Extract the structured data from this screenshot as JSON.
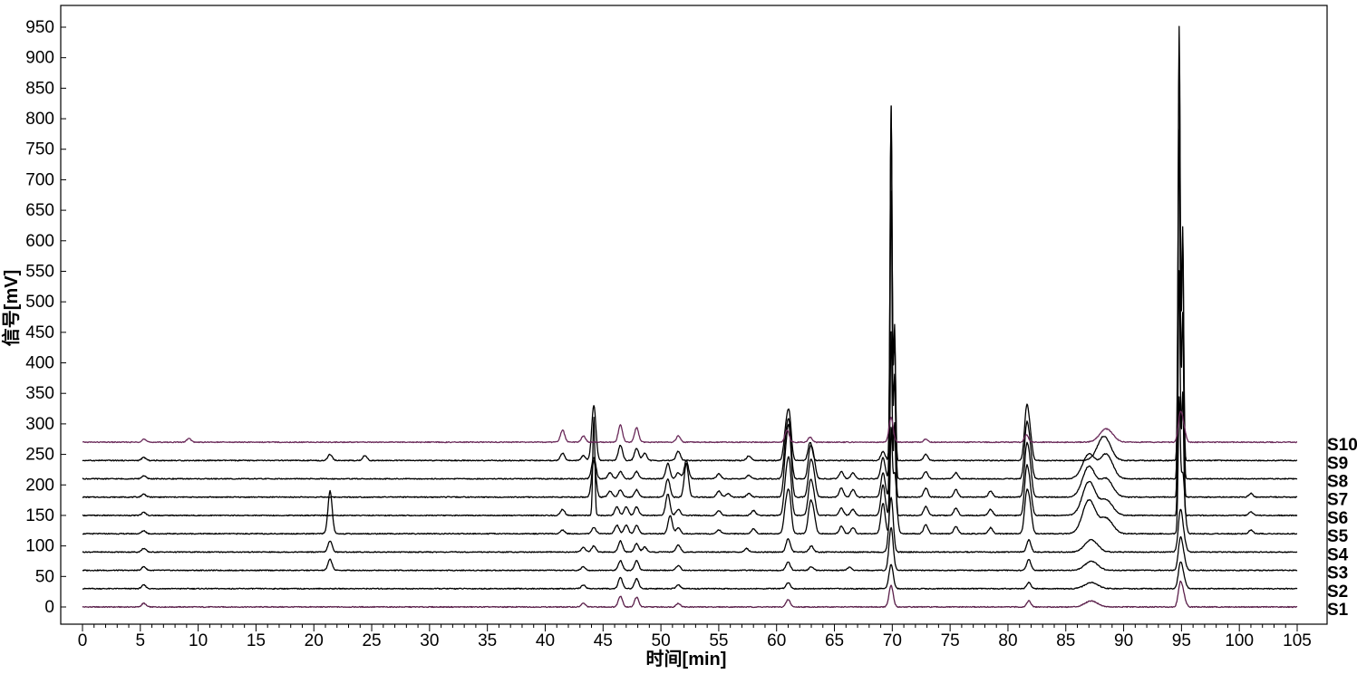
{
  "chart_data": {
    "type": "line",
    "title": "",
    "xlabel": "时间[min]",
    "ylabel": "信号[mV]",
    "xlim": [
      0,
      105
    ],
    "ylim": [
      -25,
      975
    ],
    "x_ticks": [
      0,
      5,
      10,
      15,
      20,
      25,
      30,
      35,
      40,
      45,
      50,
      55,
      60,
      65,
      70,
      75,
      80,
      85,
      90,
      95,
      100,
      105
    ],
    "y_ticks": [
      0,
      50,
      100,
      150,
      200,
      250,
      300,
      350,
      400,
      450,
      500,
      550,
      600,
      650,
      700,
      750,
      800,
      850,
      900,
      950
    ],
    "grid": false,
    "legend": "series labels at right end of each trace",
    "series": [
      {
        "name": "S1",
        "baseline": 0,
        "color": "#5a1f4a",
        "peaks": [
          [
            5.3,
            6
          ],
          [
            43.3,
            6
          ],
          [
            46.5,
            18
          ],
          [
            47.9,
            16
          ],
          [
            51.5,
            6
          ],
          [
            61.0,
            12
          ],
          [
            69.9,
            35
          ],
          [
            81.8,
            10
          ],
          [
            87.2,
            10
          ],
          [
            94.9,
            38
          ],
          [
            95.2,
            15
          ]
        ]
      },
      {
        "name": "S2",
        "baseline": 30,
        "color": "#000000",
        "peaks": [
          [
            5.3,
            6
          ],
          [
            43.3,
            6
          ],
          [
            46.5,
            18
          ],
          [
            47.9,
            16
          ],
          [
            51.5,
            6
          ],
          [
            61.0,
            10
          ],
          [
            69.9,
            40
          ],
          [
            81.8,
            10
          ],
          [
            87.2,
            10
          ],
          [
            94.9,
            40
          ],
          [
            95.2,
            15
          ]
        ]
      },
      {
        "name": "S3",
        "baseline": 60,
        "color": "#000000",
        "peaks": [
          [
            5.3,
            6
          ],
          [
            21.4,
            18
          ],
          [
            43.3,
            6
          ],
          [
            46.5,
            16
          ],
          [
            47.9,
            16
          ],
          [
            51.5,
            8
          ],
          [
            61.0,
            14
          ],
          [
            63.0,
            6
          ],
          [
            66.3,
            5
          ],
          [
            69.9,
            70
          ],
          [
            81.8,
            18
          ],
          [
            87.2,
            15
          ],
          [
            94.9,
            50
          ],
          [
            95.2,
            18
          ]
        ]
      },
      {
        "name": "S4",
        "baseline": 90,
        "color": "#000000",
        "peaks": [
          [
            5.3,
            6
          ],
          [
            21.4,
            18
          ],
          [
            43.3,
            8
          ],
          [
            44.2,
            10
          ],
          [
            46.5,
            18
          ],
          [
            47.9,
            14
          ],
          [
            48.6,
            8
          ],
          [
            51.5,
            12
          ],
          [
            57.4,
            6
          ],
          [
            61.0,
            22
          ],
          [
            63.0,
            10
          ],
          [
            69.9,
            90
          ],
          [
            81.8,
            20
          ],
          [
            87.2,
            20
          ],
          [
            94.9,
            65
          ],
          [
            95.2,
            20
          ]
        ]
      },
      {
        "name": "S5",
        "baseline": 120,
        "color": "#000000",
        "peaks": [
          [
            5.3,
            5
          ],
          [
            21.4,
            70
          ],
          [
            41.5,
            6
          ],
          [
            44.2,
            10
          ],
          [
            46.2,
            14
          ],
          [
            47.0,
            14
          ],
          [
            47.9,
            14
          ],
          [
            50.8,
            30
          ],
          [
            51.5,
            10
          ],
          [
            55.0,
            6
          ],
          [
            58.0,
            8
          ],
          [
            60.8,
            40
          ],
          [
            61.1,
            60
          ],
          [
            62.9,
            45
          ],
          [
            63.2,
            30
          ],
          [
            65.6,
            12
          ],
          [
            66.6,
            10
          ],
          [
            69.2,
            50
          ],
          [
            69.9,
            150
          ],
          [
            70.2,
            100
          ],
          [
            72.9,
            15
          ],
          [
            75.5,
            12
          ],
          [
            78.5,
            10
          ],
          [
            81.6,
            60
          ],
          [
            81.9,
            40
          ],
          [
            87.0,
            55
          ],
          [
            88.5,
            25
          ],
          [
            94.8,
            200
          ],
          [
            95.1,
            100
          ],
          [
            101.0,
            6
          ]
        ]
      },
      {
        "name": "S6",
        "baseline": 150,
        "color": "#000000",
        "peaks": [
          [
            5.3,
            5
          ],
          [
            41.5,
            10
          ],
          [
            44.2,
            160
          ],
          [
            46.2,
            14
          ],
          [
            47.0,
            14
          ],
          [
            47.9,
            14
          ],
          [
            50.6,
            35
          ],
          [
            51.5,
            10
          ],
          [
            55.0,
            8
          ],
          [
            58.0,
            8
          ],
          [
            60.8,
            50
          ],
          [
            61.1,
            80
          ],
          [
            62.9,
            50
          ],
          [
            63.2,
            30
          ],
          [
            65.6,
            12
          ],
          [
            66.6,
            10
          ],
          [
            69.2,
            50
          ],
          [
            69.9,
            300
          ],
          [
            70.2,
            150
          ],
          [
            72.9,
            15
          ],
          [
            75.5,
            12
          ],
          [
            78.5,
            10
          ],
          [
            81.6,
            70
          ],
          [
            81.9,
            40
          ],
          [
            87.0,
            55
          ],
          [
            88.5,
            25
          ],
          [
            94.8,
            400
          ],
          [
            95.1,
            200
          ],
          [
            101.0,
            6
          ]
        ]
      },
      {
        "name": "S7",
        "baseline": 180,
        "color": "#000000",
        "peaks": [
          [
            5.3,
            5
          ],
          [
            44.2,
            60
          ],
          [
            45.6,
            10
          ],
          [
            46.5,
            12
          ],
          [
            47.9,
            12
          ],
          [
            50.6,
            30
          ],
          [
            52.2,
            55
          ],
          [
            55.0,
            10
          ],
          [
            55.8,
            6
          ],
          [
            57.6,
            6
          ],
          [
            60.8,
            60
          ],
          [
            61.1,
            100
          ],
          [
            62.9,
            50
          ],
          [
            63.2,
            35
          ],
          [
            65.6,
            15
          ],
          [
            66.6,
            12
          ],
          [
            69.2,
            40
          ],
          [
            69.9,
            500
          ],
          [
            70.2,
            200
          ],
          [
            72.9,
            15
          ],
          [
            75.5,
            12
          ],
          [
            78.5,
            10
          ],
          [
            81.6,
            75
          ],
          [
            81.9,
            45
          ],
          [
            87.0,
            50
          ],
          [
            88.5,
            30
          ],
          [
            94.8,
            600
          ],
          [
            95.1,
            300
          ],
          [
            101.0,
            6
          ]
        ]
      },
      {
        "name": "S8",
        "baseline": 210,
        "color": "#000000",
        "peaks": [
          [
            5.3,
            5
          ],
          [
            44.2,
            35
          ],
          [
            45.6,
            10
          ],
          [
            46.5,
            12
          ],
          [
            47.9,
            12
          ],
          [
            50.6,
            25
          ],
          [
            51.5,
            10
          ],
          [
            52.2,
            30
          ],
          [
            55.0,
            8
          ],
          [
            57.6,
            6
          ],
          [
            60.8,
            55
          ],
          [
            61.1,
            80
          ],
          [
            62.9,
            45
          ],
          [
            63.2,
            30
          ],
          [
            65.6,
            12
          ],
          [
            66.6,
            10
          ],
          [
            69.2,
            35
          ],
          [
            69.9,
            610
          ],
          [
            70.2,
            250
          ],
          [
            72.9,
            12
          ],
          [
            75.5,
            10
          ],
          [
            81.6,
            80
          ],
          [
            81.9,
            45
          ],
          [
            87.0,
            40
          ],
          [
            88.5,
            40
          ],
          [
            94.8,
            700
          ],
          [
            95.1,
            400
          ]
        ]
      },
      {
        "name": "S9",
        "baseline": 240,
        "color": "#000000",
        "peaks": [
          [
            5.3,
            5
          ],
          [
            21.4,
            10
          ],
          [
            24.4,
            8
          ],
          [
            41.5,
            12
          ],
          [
            43.3,
            8
          ],
          [
            44.2,
            90
          ],
          [
            46.5,
            25
          ],
          [
            47.9,
            20
          ],
          [
            48.6,
            12
          ],
          [
            51.5,
            15
          ],
          [
            57.6,
            8
          ],
          [
            60.8,
            45
          ],
          [
            61.1,
            70
          ],
          [
            62.9,
            30
          ],
          [
            69.2,
            15
          ],
          [
            69.9,
            580
          ],
          [
            70.2,
            200
          ],
          [
            72.9,
            10
          ],
          [
            81.6,
            80
          ],
          [
            81.9,
            40
          ],
          [
            88.3,
            40
          ],
          [
            94.8,
            710
          ],
          [
            95.1,
            380
          ]
        ]
      },
      {
        "name": "S10",
        "baseline": 270,
        "color": "#6a2a5a",
        "peaks": [
          [
            5.3,
            5
          ],
          [
            9.2,
            6
          ],
          [
            41.5,
            20
          ],
          [
            43.3,
            10
          ],
          [
            46.5,
            28
          ],
          [
            47.9,
            24
          ],
          [
            51.5,
            10
          ],
          [
            60.9,
            20
          ],
          [
            62.9,
            8
          ],
          [
            69.9,
            40
          ],
          [
            72.9,
            5
          ],
          [
            81.6,
            12
          ],
          [
            88.5,
            22
          ],
          [
            94.9,
            45
          ],
          [
            95.2,
            20
          ]
        ]
      }
    ]
  }
}
